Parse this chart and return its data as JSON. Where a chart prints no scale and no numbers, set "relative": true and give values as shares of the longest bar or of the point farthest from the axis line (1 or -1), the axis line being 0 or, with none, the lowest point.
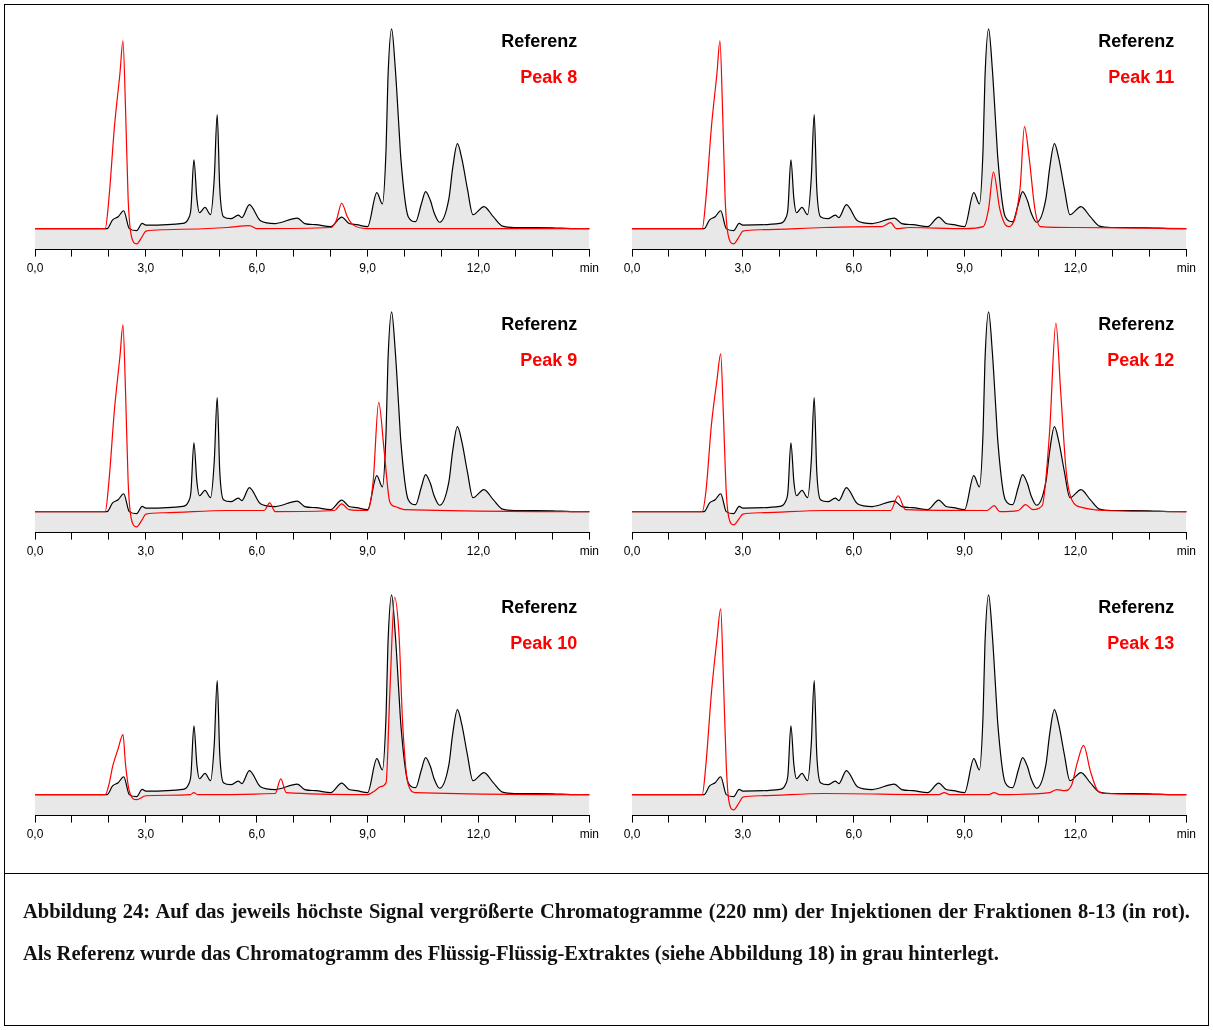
{
  "chart_data": [
    {
      "type": "line",
      "relative": true,
      "legend": "top right",
      "marker": "none",
      "xlim": [
        0,
        15
      ],
      "xticks": [
        {
          "value": 0,
          "label": "0,0"
        },
        {
          "value": 1,
          "label": null
        },
        {
          "value": 2,
          "label": null
        },
        {
          "value": 3,
          "label": "3,0"
        },
        {
          "value": 4,
          "label": null
        },
        {
          "value": 5,
          "label": null
        },
        {
          "value": 6,
          "label": "6,0"
        },
        {
          "value": 7,
          "label": null
        },
        {
          "value": 8,
          "label": null
        },
        {
          "value": 9,
          "label": "9,0"
        },
        {
          "value": 10,
          "label": null
        },
        {
          "value": 11,
          "label": null
        },
        {
          "value": 12,
          "label": "12,0"
        },
        {
          "value": 13,
          "label": null
        },
        {
          "value": 14,
          "label": null
        },
        {
          "value": 15,
          "label": "min"
        }
      ],
      "annotations": [
        "Abbildung 24: Auf das jeweils höchste Signal vergrößerte Chromatogramme (220 nm) der Injektionen der Fraktionen 8-13 (in rot). Als Referenz wurde das Chromatogramm des Flüssig-Flüssig-Extraktes (siehe Abbildung 18) in grau hinterlegt."
      ],
      "series": [
        {
          "name": "Referenz",
          "type": "area",
          "color": "#000000",
          "x": [
            0,
            1.8,
            1.95,
            2.1,
            2.25,
            2.4,
            2.55,
            2.75,
            2.9,
            3.0,
            4.0,
            4.15,
            4.22,
            4.3,
            4.38,
            4.45,
            4.6,
            4.75,
            4.85,
            4.93,
            5.0,
            5.1,
            5.3,
            5.5,
            5.6,
            5.8,
            6.1,
            6.5,
            7.1,
            7.3,
            7.6,
            8.0,
            8.3,
            8.5,
            8.7,
            9.0,
            9.25,
            9.4,
            9.5,
            9.55,
            9.65,
            9.75,
            9.85,
            9.9,
            10.1,
            10.3,
            10.45,
            10.57,
            10.7,
            10.8,
            10.95,
            11.2,
            11.3,
            11.43,
            11.55,
            11.7,
            11.85,
            12.15,
            12.4,
            12.65,
            13.0,
            14.0,
            14.5,
            15
          ],
          "values": [
            0.095,
            0.095,
            0.095,
            0.135,
            0.149,
            0.176,
            0.095,
            0.086,
            0.119,
            0.111,
            0.119,
            0.14,
            0.186,
            0.407,
            0.231,
            0.167,
            0.191,
            0.158,
            0.321,
            0.611,
            0.276,
            0.149,
            0.14,
            0.156,
            0.145,
            0.204,
            0.131,
            0.118,
            0.143,
            0.118,
            0.113,
            0.104,
            0.147,
            0.118,
            0.113,
            0.104,
            0.258,
            0.207,
            0.457,
            0.774,
            1,
            0.819,
            0.548,
            0.412,
            0.149,
            0.127,
            0.204,
            0.263,
            0.222,
            0.167,
            0.124,
            0.231,
            0.367,
            0.48,
            0.412,
            0.276,
            0.158,
            0.195,
            0.149,
            0.106,
            0.1,
            0.099,
            0.095,
            0.095
          ]
        },
        {
          "name": "Peak 8",
          "type": "line",
          "color": "#ff0000",
          "x": [
            0,
            1.9,
            2.0,
            2.15,
            2.3,
            2.38,
            2.45,
            2.52,
            2.6,
            2.75,
            2.9,
            3.0,
            3.5,
            5.2,
            5.8,
            6.0,
            8.0,
            8.15,
            8.3,
            8.45,
            8.6,
            9.0,
            15
          ],
          "values": [
            0.095,
            0.095,
            0.231,
            0.557,
            0.801,
            0.946,
            0.638,
            0.231,
            0.068,
            0.026,
            0.059,
            0.084,
            0.09,
            0.1,
            0.109,
            0.095,
            0.1,
            0.131,
            0.21,
            0.149,
            0.113,
            0.095,
            0.095
          ]
        }
      ]
    },
    {
      "type": "line",
      "relative": true,
      "legend": "top right",
      "marker": "none",
      "xlim": [
        0,
        15
      ],
      "xticks": [
        {
          "value": 0,
          "label": "0,0"
        },
        {
          "value": 1,
          "label": null
        },
        {
          "value": 2,
          "label": null
        },
        {
          "value": 3,
          "label": "3,0"
        },
        {
          "value": 4,
          "label": null
        },
        {
          "value": 5,
          "label": null
        },
        {
          "value": 6,
          "label": "6,0"
        },
        {
          "value": 7,
          "label": null
        },
        {
          "value": 8,
          "label": null
        },
        {
          "value": 9,
          "label": "9,0"
        },
        {
          "value": 10,
          "label": null
        },
        {
          "value": 11,
          "label": null
        },
        {
          "value": 12,
          "label": "12,0"
        },
        {
          "value": 13,
          "label": null
        },
        {
          "value": 14,
          "label": null
        },
        {
          "value": 15,
          "label": "min"
        }
      ],
      "series": [
        {
          "name": "Referenz",
          "type": "area",
          "color": "#000000",
          "x": [
            0,
            1.8,
            1.95,
            2.1,
            2.25,
            2.4,
            2.55,
            2.75,
            2.9,
            3.0,
            4.0,
            4.15,
            4.22,
            4.3,
            4.38,
            4.45,
            4.6,
            4.75,
            4.85,
            4.93,
            5.0,
            5.1,
            5.3,
            5.5,
            5.6,
            5.8,
            6.1,
            6.5,
            7.1,
            7.3,
            7.6,
            8.0,
            8.3,
            8.5,
            8.7,
            9.0,
            9.25,
            9.4,
            9.5,
            9.55,
            9.65,
            9.75,
            9.85,
            9.9,
            10.1,
            10.3,
            10.45,
            10.57,
            10.7,
            10.8,
            10.95,
            11.2,
            11.3,
            11.43,
            11.55,
            11.7,
            11.85,
            12.15,
            12.4,
            12.65,
            13.0,
            14.0,
            14.5,
            15
          ],
          "values": [
            0.095,
            0.095,
            0.095,
            0.135,
            0.149,
            0.176,
            0.095,
            0.086,
            0.119,
            0.111,
            0.119,
            0.14,
            0.186,
            0.407,
            0.231,
            0.167,
            0.191,
            0.158,
            0.321,
            0.611,
            0.276,
            0.149,
            0.14,
            0.156,
            0.145,
            0.204,
            0.131,
            0.118,
            0.143,
            0.118,
            0.113,
            0.104,
            0.147,
            0.118,
            0.113,
            0.104,
            0.258,
            0.207,
            0.457,
            0.774,
            1,
            0.819,
            0.548,
            0.412,
            0.149,
            0.127,
            0.204,
            0.263,
            0.222,
            0.167,
            0.124,
            0.231,
            0.367,
            0.48,
            0.412,
            0.276,
            0.158,
            0.195,
            0.149,
            0.106,
            0.1,
            0.099,
            0.095,
            0.095
          ]
        },
        {
          "name": "Peak 11",
          "type": "line",
          "color": "#ff0000",
          "x": [
            0,
            1.9,
            2.0,
            2.15,
            2.3,
            2.38,
            2.45,
            2.52,
            2.6,
            2.75,
            2.9,
            3.0,
            3.5,
            5.2,
            6.6,
            6.75,
            7.0,
            7.15,
            7.5,
            9.0,
            9.5,
            9.65,
            9.78,
            9.95,
            10.1,
            10.2,
            10.5,
            10.62,
            10.75,
            10.9,
            11.05,
            12.0,
            15
          ],
          "values": [
            0.095,
            0.095,
            0.231,
            0.557,
            0.801,
            0.946,
            0.638,
            0.231,
            0.068,
            0.026,
            0.059,
            0.084,
            0.09,
            0.1,
            0.104,
            0.104,
            0.122,
            0.095,
            0.1,
            0.095,
            0.104,
            0.186,
            0.351,
            0.186,
            0.113,
            0.104,
            0.276,
            0.557,
            0.412,
            0.186,
            0.104,
            0.1,
            0.095
          ]
        }
      ]
    },
    {
      "type": "line",
      "relative": true,
      "legend": "top right",
      "marker": "none",
      "xlim": [
        0,
        15
      ],
      "xticks": [
        {
          "value": 0,
          "label": "0,0"
        },
        {
          "value": 1,
          "label": null
        },
        {
          "value": 2,
          "label": null
        },
        {
          "value": 3,
          "label": "3,0"
        },
        {
          "value": 4,
          "label": null
        },
        {
          "value": 5,
          "label": null
        },
        {
          "value": 6,
          "label": "6,0"
        },
        {
          "value": 7,
          "label": null
        },
        {
          "value": 8,
          "label": null
        },
        {
          "value": 9,
          "label": "9,0"
        },
        {
          "value": 10,
          "label": null
        },
        {
          "value": 11,
          "label": null
        },
        {
          "value": 12,
          "label": "12,0"
        },
        {
          "value": 13,
          "label": null
        },
        {
          "value": 14,
          "label": null
        },
        {
          "value": 15,
          "label": "min"
        }
      ],
      "series": [
        {
          "name": "Referenz",
          "type": "area",
          "color": "#000000",
          "x": [
            0,
            1.8,
            1.95,
            2.1,
            2.25,
            2.4,
            2.55,
            2.75,
            2.9,
            3.0,
            4.0,
            4.15,
            4.22,
            4.3,
            4.38,
            4.45,
            4.6,
            4.75,
            4.85,
            4.93,
            5.0,
            5.1,
            5.3,
            5.5,
            5.6,
            5.8,
            6.1,
            6.5,
            7.1,
            7.3,
            7.6,
            8.0,
            8.3,
            8.5,
            8.7,
            9.0,
            9.25,
            9.4,
            9.5,
            9.55,
            9.65,
            9.75,
            9.85,
            9.9,
            10.1,
            10.3,
            10.45,
            10.57,
            10.7,
            10.8,
            10.95,
            11.2,
            11.3,
            11.43,
            11.55,
            11.7,
            11.85,
            12.15,
            12.4,
            12.65,
            13.0,
            14.0,
            14.5,
            15
          ],
          "values": [
            0.095,
            0.095,
            0.095,
            0.135,
            0.149,
            0.176,
            0.095,
            0.086,
            0.119,
            0.111,
            0.119,
            0.14,
            0.186,
            0.407,
            0.231,
            0.167,
            0.191,
            0.158,
            0.321,
            0.611,
            0.276,
            0.149,
            0.14,
            0.156,
            0.145,
            0.204,
            0.131,
            0.118,
            0.143,
            0.118,
            0.113,
            0.104,
            0.147,
            0.118,
            0.113,
            0.104,
            0.258,
            0.207,
            0.457,
            0.774,
            1,
            0.819,
            0.548,
            0.412,
            0.149,
            0.127,
            0.204,
            0.263,
            0.222,
            0.167,
            0.124,
            0.231,
            0.367,
            0.48,
            0.412,
            0.276,
            0.158,
            0.195,
            0.149,
            0.106,
            0.1,
            0.099,
            0.095,
            0.095
          ]
        },
        {
          "name": "Peak 9",
          "type": "line",
          "color": "#ff0000",
          "x": [
            0,
            1.9,
            2.0,
            2.15,
            2.3,
            2.38,
            2.45,
            2.52,
            2.6,
            2.75,
            2.9,
            3.0,
            3.5,
            5.2,
            6.2,
            6.35,
            6.5,
            8.1,
            8.3,
            8.5,
            9.0,
            9.15,
            9.3,
            9.45,
            9.6,
            9.75,
            10.0,
            15
          ],
          "values": [
            0.095,
            0.095,
            0.231,
            0.557,
            0.801,
            0.941,
            0.638,
            0.231,
            0.068,
            0.026,
            0.059,
            0.084,
            0.09,
            0.1,
            0.1,
            0.135,
            0.095,
            0.1,
            0.13,
            0.104,
            0.1,
            0.231,
            0.59,
            0.367,
            0.14,
            0.118,
            0.104,
            0.095
          ]
        }
      ]
    },
    {
      "type": "line",
      "relative": true,
      "legend": "top right",
      "marker": "none",
      "xlim": [
        0,
        15
      ],
      "xticks": [
        {
          "value": 0,
          "label": "0,0"
        },
        {
          "value": 1,
          "label": null
        },
        {
          "value": 2,
          "label": null
        },
        {
          "value": 3,
          "label": "3,0"
        },
        {
          "value": 4,
          "label": null
        },
        {
          "value": 5,
          "label": null
        },
        {
          "value": 6,
          "label": "6,0"
        },
        {
          "value": 7,
          "label": null
        },
        {
          "value": 8,
          "label": null
        },
        {
          "value": 9,
          "label": "9,0"
        },
        {
          "value": 10,
          "label": null
        },
        {
          "value": 11,
          "label": null
        },
        {
          "value": 12,
          "label": "12,0"
        },
        {
          "value": 13,
          "label": null
        },
        {
          "value": 14,
          "label": null
        },
        {
          "value": 15,
          "label": "min"
        }
      ],
      "series": [
        {
          "name": "Referenz",
          "type": "area",
          "color": "#000000",
          "x": [
            0,
            1.8,
            1.95,
            2.1,
            2.25,
            2.4,
            2.55,
            2.75,
            2.9,
            3.0,
            4.0,
            4.15,
            4.22,
            4.3,
            4.38,
            4.45,
            4.6,
            4.75,
            4.85,
            4.93,
            5.0,
            5.1,
            5.3,
            5.5,
            5.6,
            5.8,
            6.1,
            6.5,
            7.1,
            7.3,
            7.6,
            8.0,
            8.3,
            8.5,
            8.7,
            9.0,
            9.25,
            9.4,
            9.5,
            9.55,
            9.65,
            9.75,
            9.85,
            9.9,
            10.1,
            10.3,
            10.45,
            10.57,
            10.7,
            10.8,
            10.95,
            11.2,
            11.3,
            11.43,
            11.55,
            11.7,
            11.85,
            12.15,
            12.4,
            12.65,
            13.0,
            14.0,
            14.5,
            15
          ],
          "values": [
            0.095,
            0.095,
            0.095,
            0.135,
            0.149,
            0.176,
            0.095,
            0.086,
            0.119,
            0.111,
            0.119,
            0.14,
            0.186,
            0.407,
            0.231,
            0.167,
            0.191,
            0.158,
            0.321,
            0.611,
            0.276,
            0.149,
            0.14,
            0.156,
            0.145,
            0.204,
            0.131,
            0.118,
            0.143,
            0.118,
            0.113,
            0.104,
            0.147,
            0.118,
            0.113,
            0.104,
            0.258,
            0.207,
            0.457,
            0.774,
            1,
            0.819,
            0.548,
            0.412,
            0.149,
            0.127,
            0.204,
            0.263,
            0.222,
            0.167,
            0.124,
            0.231,
            0.367,
            0.48,
            0.412,
            0.276,
            0.158,
            0.195,
            0.149,
            0.106,
            0.1,
            0.099,
            0.095,
            0.095
          ]
        },
        {
          "name": "Peak 12",
          "type": "line",
          "color": "#ff0000",
          "x": [
            0,
            1.9,
            2.0,
            2.15,
            2.3,
            2.4,
            2.47,
            2.55,
            2.62,
            2.75,
            2.9,
            3.0,
            3.5,
            5.2,
            7.0,
            7.2,
            7.4,
            9.6,
            9.8,
            9.95,
            10.45,
            10.65,
            10.85,
            11.1,
            11.3,
            11.47,
            11.6,
            11.75,
            11.9,
            12.2,
            12.8,
            15
          ],
          "values": [
            0.095,
            0.095,
            0.186,
            0.49,
            0.692,
            0.81,
            0.548,
            0.186,
            0.068,
            0.035,
            0.063,
            0.084,
            0.09,
            0.1,
            0.1,
            0.167,
            0.104,
            0.1,
            0.122,
            0.095,
            0.1,
            0.127,
            0.104,
            0.122,
            0.457,
            0.949,
            0.638,
            0.276,
            0.149,
            0.113,
            0.1,
            0.095
          ]
        }
      ]
    },
    {
      "type": "line",
      "relative": true,
      "legend": "top right",
      "marker": "none",
      "xlim": [
        0,
        15
      ],
      "xticks": [
        {
          "value": 0,
          "label": "0,0"
        },
        {
          "value": 1,
          "label": null
        },
        {
          "value": 2,
          "label": null
        },
        {
          "value": 3,
          "label": "3,0"
        },
        {
          "value": 4,
          "label": null
        },
        {
          "value": 5,
          "label": null
        },
        {
          "value": 6,
          "label": "6,0"
        },
        {
          "value": 7,
          "label": null
        },
        {
          "value": 8,
          "label": null
        },
        {
          "value": 9,
          "label": "9,0"
        },
        {
          "value": 10,
          "label": null
        },
        {
          "value": 11,
          "label": null
        },
        {
          "value": 12,
          "label": "12,0"
        },
        {
          "value": 13,
          "label": null
        },
        {
          "value": 14,
          "label": null
        },
        {
          "value": 15,
          "label": "min"
        }
      ],
      "series": [
        {
          "name": "Referenz",
          "type": "area",
          "color": "#000000",
          "x": [
            0,
            1.8,
            1.95,
            2.1,
            2.25,
            2.4,
            2.55,
            2.75,
            2.9,
            3.0,
            4.0,
            4.15,
            4.22,
            4.3,
            4.38,
            4.45,
            4.6,
            4.75,
            4.85,
            4.93,
            5.0,
            5.1,
            5.3,
            5.5,
            5.6,
            5.8,
            6.1,
            6.5,
            7.1,
            7.3,
            7.6,
            8.0,
            8.3,
            8.5,
            8.7,
            9.0,
            9.25,
            9.4,
            9.5,
            9.55,
            9.65,
            9.75,
            9.85,
            9.9,
            10.1,
            10.3,
            10.45,
            10.57,
            10.7,
            10.8,
            10.95,
            11.2,
            11.3,
            11.43,
            11.55,
            11.7,
            11.85,
            12.15,
            12.4,
            12.65,
            13.0,
            14.0,
            14.5,
            15
          ],
          "values": [
            0.095,
            0.095,
            0.095,
            0.135,
            0.149,
            0.176,
            0.095,
            0.086,
            0.119,
            0.111,
            0.119,
            0.14,
            0.186,
            0.407,
            0.231,
            0.167,
            0.191,
            0.158,
            0.321,
            0.611,
            0.276,
            0.149,
            0.14,
            0.156,
            0.145,
            0.204,
            0.131,
            0.118,
            0.143,
            0.118,
            0.113,
            0.104,
            0.147,
            0.118,
            0.113,
            0.104,
            0.258,
            0.207,
            0.457,
            0.774,
            1,
            0.819,
            0.548,
            0.412,
            0.149,
            0.127,
            0.204,
            0.263,
            0.222,
            0.167,
            0.124,
            0.231,
            0.367,
            0.48,
            0.412,
            0.276,
            0.158,
            0.195,
            0.149,
            0.106,
            0.1,
            0.099,
            0.095,
            0.095
          ]
        },
        {
          "name": "Peak 10",
          "type": "line",
          "color": "#ff0000",
          "x": [
            0,
            1.9,
            2.0,
            2.1,
            2.25,
            2.38,
            2.45,
            2.55,
            2.75,
            3.0,
            4.2,
            4.3,
            4.4,
            6.5,
            6.65,
            6.8,
            9.0,
            9.2,
            9.35,
            9.5,
            9.6,
            9.73,
            9.85,
            9.95,
            10.1,
            10.3,
            15
          ],
          "values": [
            0.095,
            0.095,
            0.14,
            0.222,
            0.303,
            0.367,
            0.231,
            0.113,
            0.072,
            0.09,
            0.095,
            0.104,
            0.095,
            0.1,
            0.166,
            0.104,
            0.095,
            0.113,
            0.131,
            0.149,
            0.548,
            0.989,
            0.819,
            0.412,
            0.14,
            0.104,
            0.095
          ]
        }
      ]
    },
    {
      "type": "line",
      "relative": true,
      "legend": "top right",
      "marker": "none",
      "xlim": [
        0,
        15
      ],
      "xticks": [
        {
          "value": 0,
          "label": "0,0"
        },
        {
          "value": 1,
          "label": null
        },
        {
          "value": 2,
          "label": null
        },
        {
          "value": 3,
          "label": "3,0"
        },
        {
          "value": 4,
          "label": null
        },
        {
          "value": 5,
          "label": null
        },
        {
          "value": 6,
          "label": "6,0"
        },
        {
          "value": 7,
          "label": null
        },
        {
          "value": 8,
          "label": null
        },
        {
          "value": 9,
          "label": "9,0"
        },
        {
          "value": 10,
          "label": null
        },
        {
          "value": 11,
          "label": null
        },
        {
          "value": 12,
          "label": "12,0"
        },
        {
          "value": 13,
          "label": null
        },
        {
          "value": 14,
          "label": null
        },
        {
          "value": 15,
          "label": "min"
        }
      ],
      "series": [
        {
          "name": "Referenz",
          "type": "area",
          "color": "#000000",
          "x": [
            0,
            1.8,
            1.95,
            2.1,
            2.25,
            2.4,
            2.55,
            2.75,
            2.9,
            3.0,
            4.0,
            4.15,
            4.22,
            4.3,
            4.38,
            4.45,
            4.6,
            4.75,
            4.85,
            4.93,
            5.0,
            5.1,
            5.3,
            5.5,
            5.6,
            5.8,
            6.1,
            6.5,
            7.1,
            7.3,
            7.6,
            8.0,
            8.3,
            8.5,
            8.7,
            9.0,
            9.25,
            9.4,
            9.5,
            9.55,
            9.65,
            9.75,
            9.85,
            9.9,
            10.1,
            10.3,
            10.45,
            10.57,
            10.7,
            10.8,
            10.95,
            11.2,
            11.3,
            11.43,
            11.55,
            11.7,
            11.85,
            12.15,
            12.4,
            12.65,
            13.0,
            14.0,
            14.5,
            15
          ],
          "values": [
            0.095,
            0.095,
            0.095,
            0.135,
            0.149,
            0.176,
            0.095,
            0.086,
            0.119,
            0.111,
            0.119,
            0.14,
            0.186,
            0.407,
            0.231,
            0.167,
            0.191,
            0.158,
            0.321,
            0.611,
            0.276,
            0.149,
            0.14,
            0.156,
            0.145,
            0.204,
            0.131,
            0.118,
            0.143,
            0.118,
            0.113,
            0.104,
            0.147,
            0.118,
            0.113,
            0.104,
            0.258,
            0.207,
            0.457,
            0.774,
            1,
            0.819,
            0.548,
            0.412,
            0.149,
            0.127,
            0.204,
            0.263,
            0.222,
            0.167,
            0.124,
            0.231,
            0.367,
            0.48,
            0.412,
            0.276,
            0.158,
            0.195,
            0.149,
            0.106,
            0.1,
            0.099,
            0.095,
            0.095
          ]
        },
        {
          "name": "Peak 13",
          "type": "line",
          "color": "#ff0000",
          "x": [
            0,
            1.9,
            2.0,
            2.15,
            2.3,
            2.4,
            2.47,
            2.55,
            2.62,
            2.75,
            2.9,
            3.0,
            3.5,
            5.2,
            8.3,
            8.45,
            8.6,
            9.65,
            9.8,
            9.95,
            11.3,
            11.5,
            11.7,
            11.9,
            12.05,
            12.22,
            12.4,
            12.6,
            12.8,
            15
          ],
          "values": [
            0.095,
            0.095,
            0.231,
            0.557,
            0.801,
            0.937,
            0.638,
            0.231,
            0.068,
            0.026,
            0.059,
            0.084,
            0.09,
            0.1,
            0.095,
            0.104,
            0.095,
            0.095,
            0.104,
            0.095,
            0.104,
            0.118,
            0.113,
            0.14,
            0.24,
            0.318,
            0.204,
            0.113,
            0.1,
            0.095
          ]
        }
      ]
    }
  ]
}
